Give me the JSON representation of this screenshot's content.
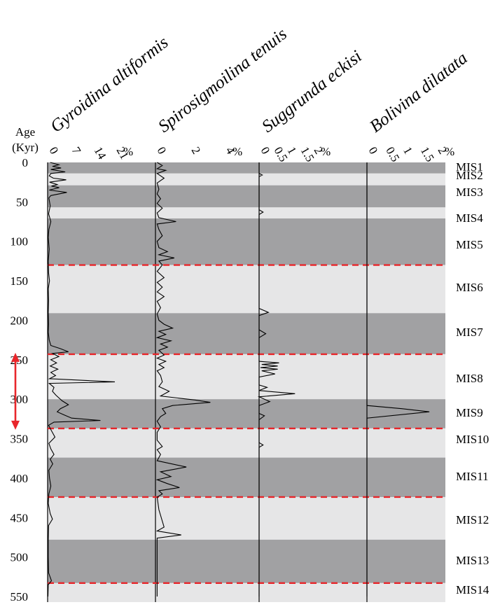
{
  "chart_data": {
    "type": "line",
    "layout": "stratigraphic multi-panel plot",
    "y_axis": {
      "label_line1": "Age",
      "label_line2": "(Kyr)",
      "ticks": [
        0,
        50,
        100,
        150,
        200,
        250,
        300,
        350,
        400,
        450,
        500,
        550
      ],
      "range": [
        0,
        550
      ],
      "direction": "down"
    },
    "panels": [
      {
        "title": "Gyroidina altiformis",
        "ticks": [
          "0",
          "7",
          "14",
          "21"
        ],
        "tick_values": [
          0,
          7,
          14,
          21
        ],
        "unit": "%",
        "range": [
          0,
          21
        ],
        "series": [
          {
            "age": 0,
            "value": 0.8
          },
          {
            "age": 3,
            "value": 3.5
          },
          {
            "age": 5,
            "value": 1.5
          },
          {
            "age": 7,
            "value": 4.2
          },
          {
            "age": 9,
            "value": 1.0
          },
          {
            "age": 12,
            "value": 5.5
          },
          {
            "age": 14,
            "value": 1.0
          },
          {
            "age": 17,
            "value": 0.5
          },
          {
            "age": 20,
            "value": 1.8
          },
          {
            "age": 22,
            "value": 5.8
          },
          {
            "age": 25,
            "value": 0.6
          },
          {
            "age": 28,
            "value": 3.0
          },
          {
            "age": 30,
            "value": 1.2
          },
          {
            "age": 32,
            "value": 3.6
          },
          {
            "age": 35,
            "value": 0.5
          },
          {
            "age": 38,
            "value": 6.0
          },
          {
            "age": 42,
            "value": 1.0
          },
          {
            "age": 45,
            "value": 0.4
          },
          {
            "age": 55,
            "value": 0.8
          },
          {
            "age": 65,
            "value": 0.3
          },
          {
            "age": 75,
            "value": 1.0
          },
          {
            "age": 85,
            "value": 0.4
          },
          {
            "age": 95,
            "value": 0.2
          },
          {
            "age": 110,
            "value": 0.5
          },
          {
            "age": 125,
            "value": 0.2
          },
          {
            "age": 140,
            "value": 0.3
          },
          {
            "age": 150,
            "value": 0.6
          },
          {
            "age": 160,
            "value": 0.2
          },
          {
            "age": 175,
            "value": 0.3
          },
          {
            "age": 190,
            "value": 0.2
          },
          {
            "age": 205,
            "value": 0.3
          },
          {
            "age": 215,
            "value": 0.2
          },
          {
            "age": 225,
            "value": 0.5
          },
          {
            "age": 232,
            "value": 1.0
          },
          {
            "age": 236,
            "value": 4.0
          },
          {
            "age": 240,
            "value": 6.5
          },
          {
            "age": 242,
            "value": 1.5
          },
          {
            "age": 246,
            "value": 3.5
          },
          {
            "age": 250,
            "value": 1.0
          },
          {
            "age": 254,
            "value": 2.8
          },
          {
            "age": 258,
            "value": 0.8
          },
          {
            "age": 262,
            "value": 3.2
          },
          {
            "age": 266,
            "value": 1.0
          },
          {
            "age": 270,
            "value": 2.5
          },
          {
            "age": 274,
            "value": 0.6
          },
          {
            "age": 278,
            "value": 21.0
          },
          {
            "age": 280,
            "value": 0.5
          },
          {
            "age": 285,
            "value": 2.0
          },
          {
            "age": 290,
            "value": 1.5
          },
          {
            "age": 295,
            "value": 2.6
          },
          {
            "age": 302,
            "value": 4.5
          },
          {
            "age": 307,
            "value": 6.5
          },
          {
            "age": 312,
            "value": 4.0
          },
          {
            "age": 316,
            "value": 3.0
          },
          {
            "age": 320,
            "value": 5.2
          },
          {
            "age": 324,
            "value": 7.5
          },
          {
            "age": 327,
            "value": 16.5
          },
          {
            "age": 329,
            "value": 2.0
          },
          {
            "age": 333,
            "value": 0.3
          },
          {
            "age": 340,
            "value": 1.2
          },
          {
            "age": 348,
            "value": 2.3
          },
          {
            "age": 356,
            "value": 0.4
          },
          {
            "age": 363,
            "value": 1.0
          },
          {
            "age": 370,
            "value": 2.0
          },
          {
            "age": 376,
            "value": 0.8
          },
          {
            "age": 382,
            "value": 1.6
          },
          {
            "age": 390,
            "value": 0.4
          },
          {
            "age": 400,
            "value": 0.6
          },
          {
            "age": 410,
            "value": 1.0
          },
          {
            "age": 420,
            "value": 0.4
          },
          {
            "age": 432,
            "value": 0.2
          },
          {
            "age": 445,
            "value": 0.8
          },
          {
            "age": 452,
            "value": 1.5
          },
          {
            "age": 460,
            "value": 0.3
          },
          {
            "age": 480,
            "value": 0.2
          },
          {
            "age": 500,
            "value": 0.2
          },
          {
            "age": 520,
            "value": 0.3
          },
          {
            "age": 530,
            "value": 1.2
          },
          {
            "age": 535,
            "value": 0.2
          },
          {
            "age": 550,
            "value": 0.1
          }
        ]
      },
      {
        "title": "Spirosigmoilina tenuis",
        "ticks": [
          "0",
          "2",
          "4"
        ],
        "tick_values": [
          0,
          2,
          4
        ],
        "unit": "%",
        "range": [
          0,
          4.3
        ],
        "series": [
          {
            "age": 0,
            "value": 0.1
          },
          {
            "age": 4,
            "value": 0.4
          },
          {
            "age": 8,
            "value": 0.1
          },
          {
            "age": 10,
            "value": 0.6
          },
          {
            "age": 14,
            "value": 0.1
          },
          {
            "age": 20,
            "value": 0.5
          },
          {
            "age": 26,
            "value": 0.1
          },
          {
            "age": 34,
            "value": 0.2
          },
          {
            "age": 40,
            "value": 0.1
          },
          {
            "age": 46,
            "value": 0.3
          },
          {
            "age": 52,
            "value": 0.1
          },
          {
            "age": 58,
            "value": 0.4
          },
          {
            "age": 64,
            "value": 0.1
          },
          {
            "age": 70,
            "value": 0.2
          },
          {
            "age": 75,
            "value": 1.2
          },
          {
            "age": 78,
            "value": 0.1
          },
          {
            "age": 85,
            "value": 0.2
          },
          {
            "age": 93,
            "value": 0.4
          },
          {
            "age": 100,
            "value": 0.1
          },
          {
            "age": 108,
            "value": 0.2
          },
          {
            "age": 113,
            "value": 0.7
          },
          {
            "age": 117,
            "value": 0.2
          },
          {
            "age": 121,
            "value": 1.1
          },
          {
            "age": 125,
            "value": 0.2
          },
          {
            "age": 130,
            "value": 0.4
          },
          {
            "age": 138,
            "value": 0.1
          },
          {
            "age": 146,
            "value": 0.5
          },
          {
            "age": 152,
            "value": 0.1
          },
          {
            "age": 158,
            "value": 0.4
          },
          {
            "age": 164,
            "value": 0.1
          },
          {
            "age": 170,
            "value": 0.5
          },
          {
            "age": 176,
            "value": 0.1
          },
          {
            "age": 184,
            "value": 0.3
          },
          {
            "age": 192,
            "value": 0.1
          },
          {
            "age": 200,
            "value": 0.2
          },
          {
            "age": 205,
            "value": 0.5
          },
          {
            "age": 210,
            "value": 1.0
          },
          {
            "age": 214,
            "value": 0.2
          },
          {
            "age": 218,
            "value": 0.6
          },
          {
            "age": 222,
            "value": 0.1
          },
          {
            "age": 226,
            "value": 0.9
          },
          {
            "age": 230,
            "value": 0.3
          },
          {
            "age": 234,
            "value": 0.7
          },
          {
            "age": 238,
            "value": 0.2
          },
          {
            "age": 244,
            "value": 0.5
          },
          {
            "age": 248,
            "value": 0.1
          },
          {
            "age": 252,
            "value": 0.6
          },
          {
            "age": 256,
            "value": 0.2
          },
          {
            "age": 260,
            "value": 0.5
          },
          {
            "age": 264,
            "value": 0.1
          },
          {
            "age": 270,
            "value": 0.3
          },
          {
            "age": 278,
            "value": 0.4
          },
          {
            "age": 284,
            "value": 0.2
          },
          {
            "age": 290,
            "value": 0.8
          },
          {
            "age": 296,
            "value": 0.3
          },
          {
            "age": 301,
            "value": 2.3
          },
          {
            "age": 304,
            "value": 3.2
          },
          {
            "age": 308,
            "value": 1.0
          },
          {
            "age": 312,
            "value": 0.4
          },
          {
            "age": 318,
            "value": 0.6
          },
          {
            "age": 322,
            "value": 0.3
          },
          {
            "age": 328,
            "value": 0.1
          },
          {
            "age": 335,
            "value": 0.3
          },
          {
            "age": 342,
            "value": 0.1
          },
          {
            "age": 352,
            "value": 0.1
          },
          {
            "age": 360,
            "value": 0.4
          },
          {
            "age": 364,
            "value": 0.1
          },
          {
            "age": 370,
            "value": 0.3
          },
          {
            "age": 378,
            "value": 0.1
          },
          {
            "age": 386,
            "value": 1.8
          },
          {
            "age": 392,
            "value": 0.3
          },
          {
            "age": 398,
            "value": 0.9
          },
          {
            "age": 402,
            "value": 0.1
          },
          {
            "age": 407,
            "value": 0.7
          },
          {
            "age": 412,
            "value": 1.4
          },
          {
            "age": 416,
            "value": 0.2
          },
          {
            "age": 420,
            "value": 0.4
          },
          {
            "age": 424,
            "value": 0.1
          },
          {
            "age": 440,
            "value": 0.2
          },
          {
            "age": 462,
            "value": 0.5
          },
          {
            "age": 467,
            "value": 0.1
          },
          {
            "age": 472,
            "value": 1.5
          },
          {
            "age": 476,
            "value": 0.1
          },
          {
            "age": 495,
            "value": 0.1
          },
          {
            "age": 520,
            "value": 0.1
          },
          {
            "age": 550,
            "value": 0.1
          }
        ]
      },
      {
        "title": "Suggrunda eckisi",
        "ticks": [
          "0",
          "0.5",
          "1",
          "1.5",
          "2"
        ],
        "tick_values": [
          0,
          0.5,
          1,
          1.5,
          2
        ],
        "unit": "%",
        "range": [
          0,
          2.2
        ],
        "series": [
          {
            "age": 0,
            "value": 0
          },
          {
            "age": 14,
            "value": 0
          },
          {
            "age": 16,
            "value": 0.12
          },
          {
            "age": 18,
            "value": 0
          },
          {
            "age": 60,
            "value": 0
          },
          {
            "age": 63,
            "value": 0.15
          },
          {
            "age": 66,
            "value": 0
          },
          {
            "age": 185,
            "value": 0
          },
          {
            "age": 190,
            "value": 0.35
          },
          {
            "age": 194,
            "value": 0
          },
          {
            "age": 212,
            "value": 0
          },
          {
            "age": 217,
            "value": 0.25
          },
          {
            "age": 222,
            "value": 0
          },
          {
            "age": 240,
            "value": 0
          },
          {
            "age": 252,
            "value": 0
          },
          {
            "age": 254,
            "value": 0.75
          },
          {
            "age": 256,
            "value": 0.1
          },
          {
            "age": 258,
            "value": 0.7
          },
          {
            "age": 260,
            "value": 0.05
          },
          {
            "age": 262,
            "value": 0.7
          },
          {
            "age": 264,
            "value": 0.1
          },
          {
            "age": 268,
            "value": 0.6
          },
          {
            "age": 272,
            "value": 0
          },
          {
            "age": 282,
            "value": 0
          },
          {
            "age": 285,
            "value": 0.3
          },
          {
            "age": 289,
            "value": 0
          },
          {
            "age": 293,
            "value": 1.35
          },
          {
            "age": 297,
            "value": 0
          },
          {
            "age": 303,
            "value": 0.4
          },
          {
            "age": 308,
            "value": 0
          },
          {
            "age": 318,
            "value": 0
          },
          {
            "age": 321,
            "value": 0.2
          },
          {
            "age": 326,
            "value": 0
          },
          {
            "age": 355,
            "value": 0
          },
          {
            "age": 358,
            "value": 0.15
          },
          {
            "age": 361,
            "value": 0
          },
          {
            "age": 550,
            "value": 0
          }
        ]
      },
      {
        "title": "Bolivina dilatata",
        "ticks": [
          "0",
          "0.5",
          "1",
          "1.5",
          "2"
        ],
        "tick_values": [
          0,
          0.5,
          1,
          1.5,
          2
        ],
        "unit": "%",
        "range": [
          0,
          2.2
        ],
        "series": [
          {
            "age": 0,
            "value": 0
          },
          {
            "age": 308,
            "value": 0
          },
          {
            "age": 312,
            "value": 1.0
          },
          {
            "age": 316,
            "value": 1.8
          },
          {
            "age": 324,
            "value": 0
          },
          {
            "age": 550,
            "value": 0
          }
        ]
      }
    ],
    "mis_stages": [
      {
        "label": "MIS1",
        "top": 0,
        "bottom": 14,
        "shade": "dark"
      },
      {
        "label": "MIS2",
        "top": 14,
        "bottom": 29,
        "shade": "light"
      },
      {
        "label": "MIS3",
        "top": 29,
        "bottom": 57,
        "shade": "dark"
      },
      {
        "label": "MIS4",
        "top": 57,
        "bottom": 71,
        "shade": "light"
      },
      {
        "label": "MIS5",
        "top": 71,
        "bottom": 130,
        "shade": "dark"
      },
      {
        "label": "MIS6",
        "top": 130,
        "bottom": 191,
        "shade": "light"
      },
      {
        "label": "MIS7",
        "top": 191,
        "bottom": 243,
        "shade": "dark"
      },
      {
        "label": "MIS8",
        "top": 243,
        "bottom": 300,
        "shade": "light"
      },
      {
        "label": "MIS9",
        "top": 300,
        "bottom": 337,
        "shade": "dark"
      },
      {
        "label": "MIS10",
        "top": 337,
        "bottom": 374,
        "shade": "light"
      },
      {
        "label": "MIS11",
        "top": 374,
        "bottom": 424,
        "shade": "dark"
      },
      {
        "label": "MIS12",
        "top": 424,
        "bottom": 478,
        "shade": "light"
      },
      {
        "label": "MIS13",
        "top": 478,
        "bottom": 533,
        "shade": "dark"
      },
      {
        "label": "MIS14",
        "top": 533,
        "bottom": 563,
        "shade": "light"
      }
    ],
    "reference_lines": [
      130,
      243,
      337,
      424,
      533
    ],
    "arrow_range": [
      243,
      337
    ],
    "colors": {
      "dark_band": "#a1a1a3",
      "light_band": "#e6e6e7",
      "reference_line": "#e8262b",
      "arrow": "#e8262b",
      "series_line": "#000000"
    },
    "grid": false
  }
}
